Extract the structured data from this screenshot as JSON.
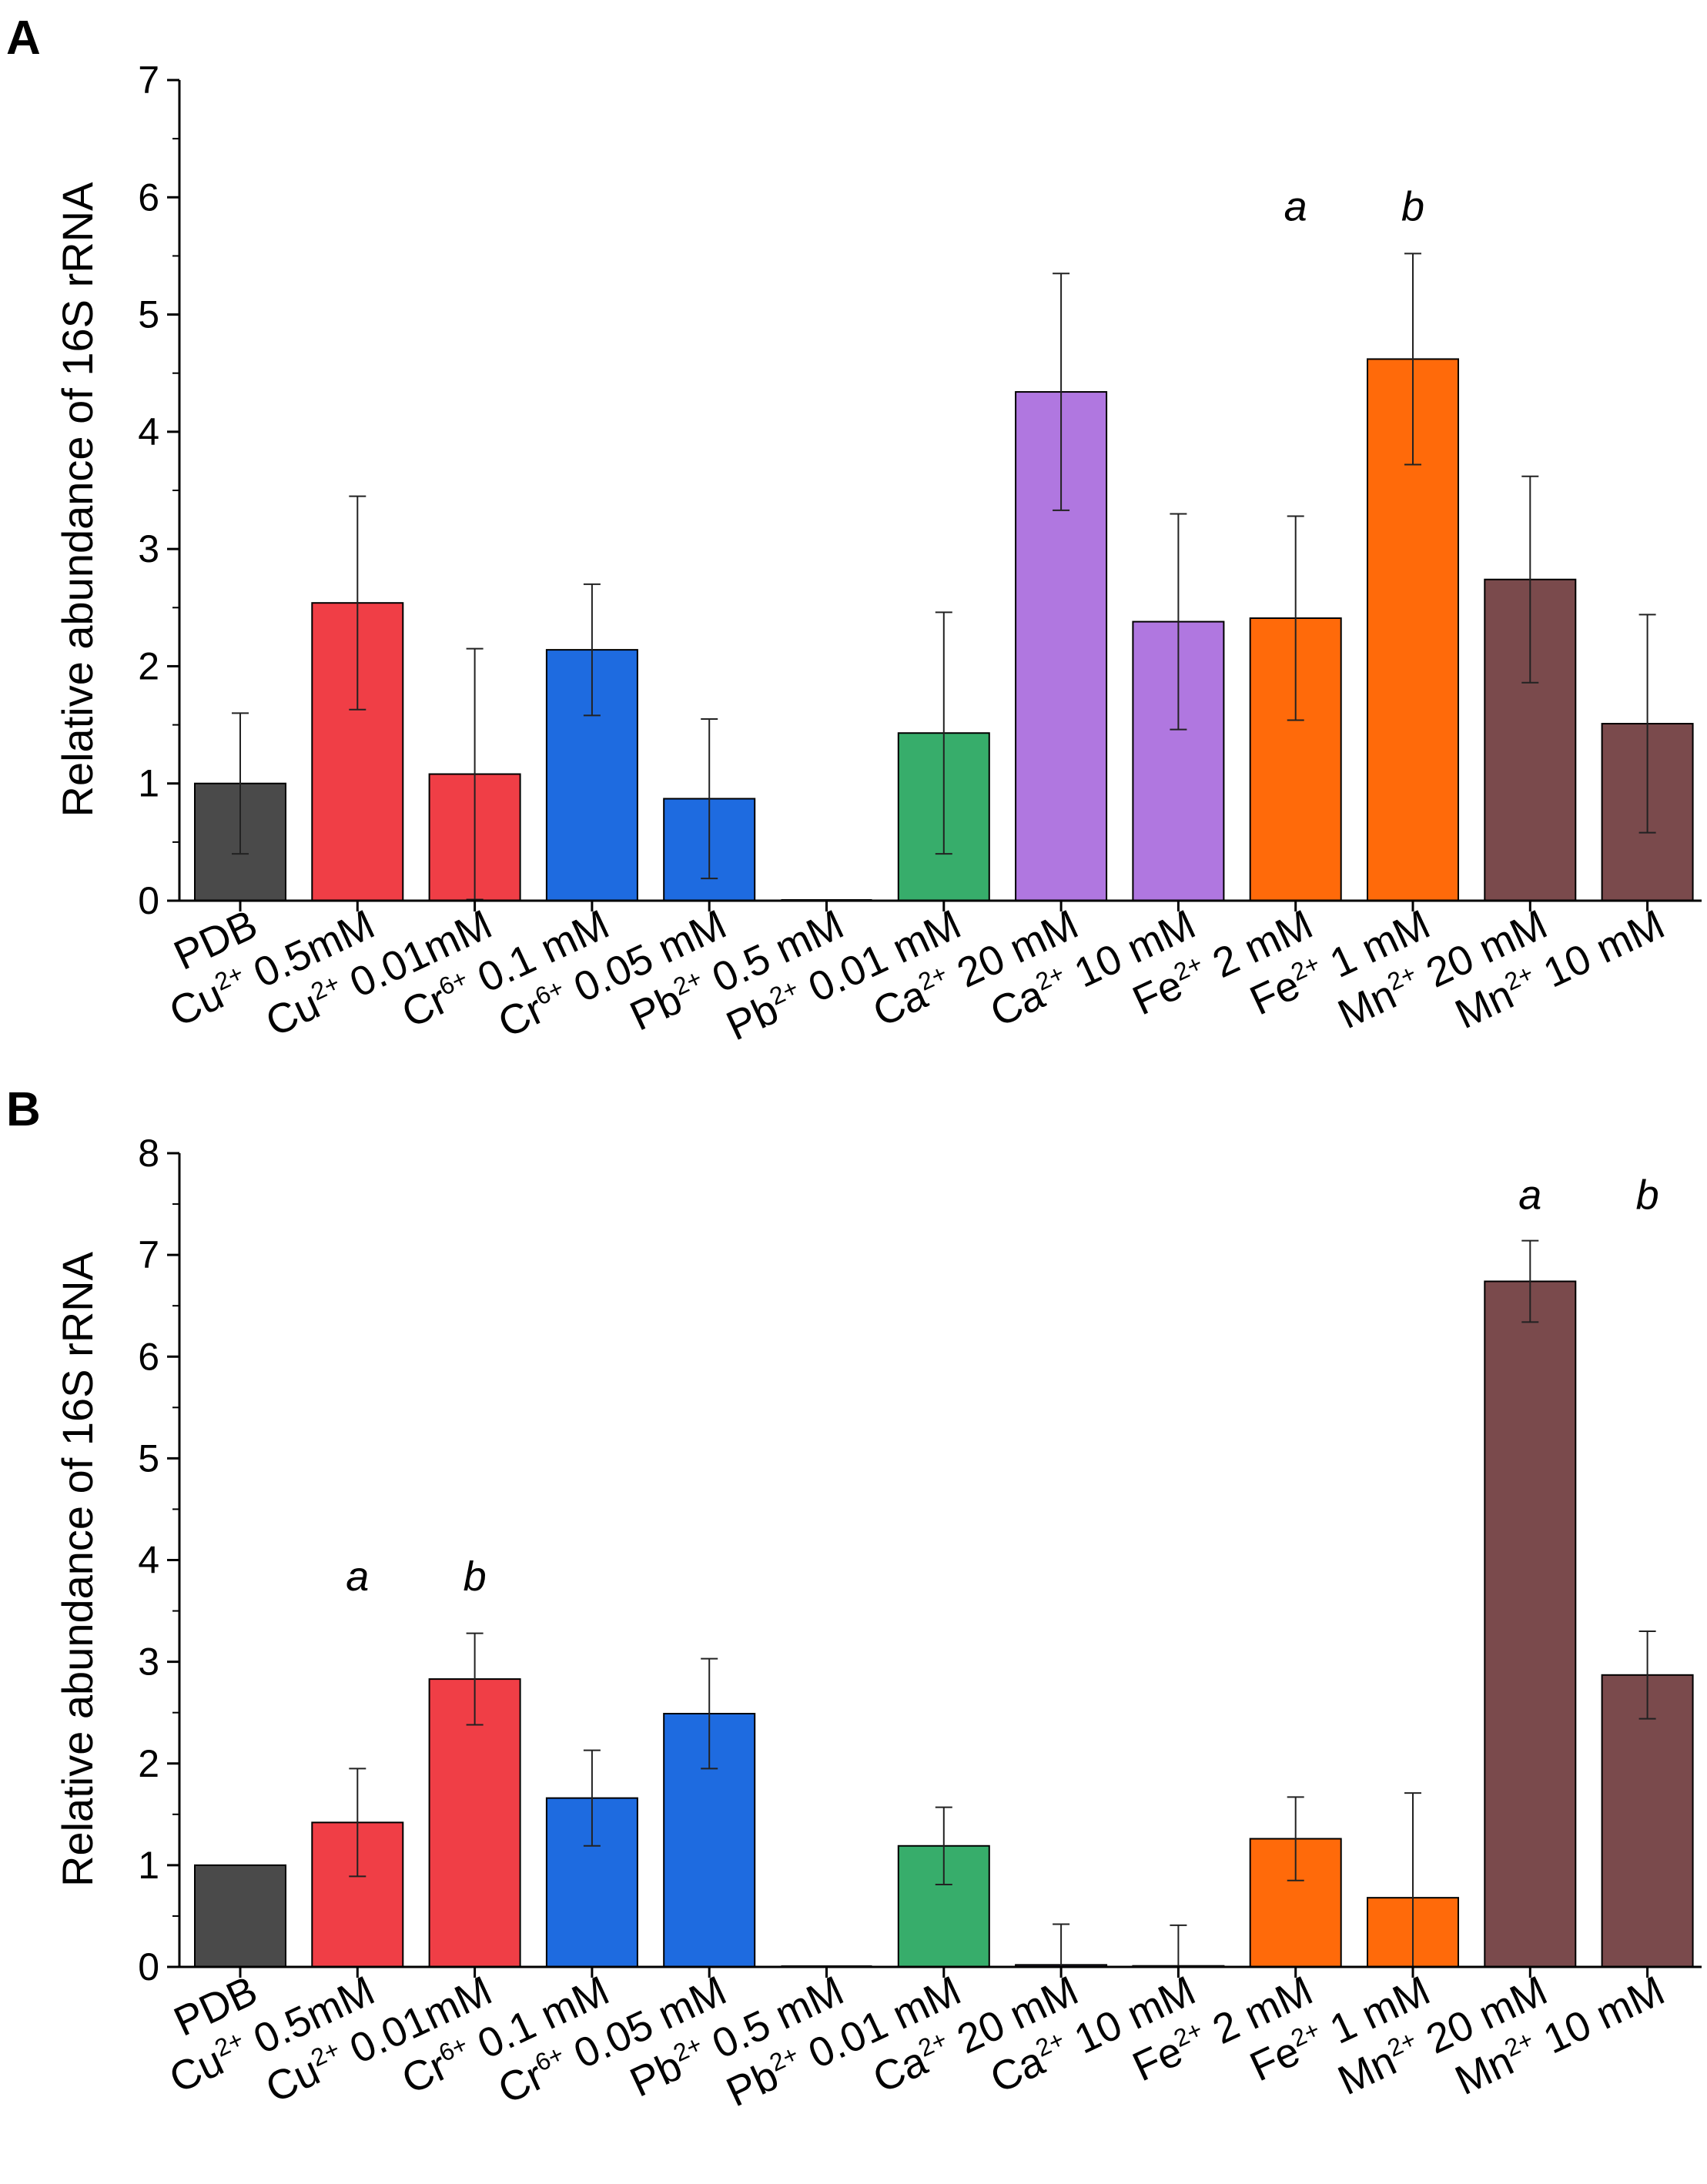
{
  "chart_data": [
    {
      "type": "bar",
      "panel_label": "A",
      "ylabel": "Relative abundance of 16S rRNA",
      "ylim": [
        0,
        7
      ],
      "yticks": [
        0,
        1,
        2,
        3,
        4,
        5,
        6,
        7
      ],
      "categories": [
        {
          "base": "PDB",
          "sup": "",
          "rest": ""
        },
        {
          "base": "Cu",
          "sup": "2+",
          "rest": " 0.5mM"
        },
        {
          "base": "Cu",
          "sup": "2+",
          "rest": " 0.01mM"
        },
        {
          "base": "Cr",
          "sup": "6+",
          "rest": " 0.1 mM"
        },
        {
          "base": "Cr",
          "sup": "6+",
          "rest": " 0.05 mM"
        },
        {
          "base": "Pb",
          "sup": "2+",
          "rest": " 0.5 mM"
        },
        {
          "base": "Pb",
          "sup": "2+",
          "rest": " 0.01 mM"
        },
        {
          "base": "Ca",
          "sup": "2+",
          "rest": " 20 mM"
        },
        {
          "base": "Ca",
          "sup": "2+",
          "rest": " 10 mM"
        },
        {
          "base": "Fe",
          "sup": "2+",
          "rest": " 2 mM"
        },
        {
          "base": "Fe",
          "sup": "2+",
          "rest": " 1 mM"
        },
        {
          "base": "Mn",
          "sup": "2+",
          "rest": " 20 mM"
        },
        {
          "base": "Mn",
          "sup": "2+",
          "rest": " 10 mM"
        }
      ],
      "values": [
        1.0,
        2.54,
        1.08,
        2.14,
        0.87,
        0.0,
        1.43,
        4.34,
        2.38,
        2.41,
        4.62,
        2.74,
        1.51
      ],
      "errors": [
        0.6,
        0.91,
        1.07,
        0.56,
        0.68,
        0.0,
        1.03,
        1.01,
        0.92,
        0.87,
        0.9,
        0.88,
        0.93
      ],
      "colors": [
        "#4a4a4a",
        "#f03e46",
        "#f03e46",
        "#1e6be0",
        "#1e6be0",
        "#1e6be0",
        "#37ad6b",
        "#b077e0",
        "#b077e0",
        "#ff6a0a",
        "#ff6a0a",
        "#7a4a4c",
        "#7a4a4c"
      ],
      "annotations": [
        {
          "text": "a",
          "category_index": 9,
          "y": 5.8
        },
        {
          "text": "b",
          "category_index": 10,
          "y": 5.8
        }
      ]
    },
    {
      "type": "bar",
      "panel_label": "B",
      "ylabel": "Relative abundance of 16S rRNA",
      "ylim": [
        0,
        8
      ],
      "yticks": [
        0,
        1,
        2,
        3,
        4,
        5,
        6,
        7,
        8
      ],
      "categories": [
        {
          "base": "PDB",
          "sup": "",
          "rest": ""
        },
        {
          "base": "Cu",
          "sup": "2+",
          "rest": " 0.5mM"
        },
        {
          "base": "Cu",
          "sup": "2+",
          "rest": " 0.01mM"
        },
        {
          "base": "Cr",
          "sup": "6+",
          "rest": " 0.1 mM"
        },
        {
          "base": "Cr",
          "sup": "6+",
          "rest": " 0.05 mM"
        },
        {
          "base": "Pb",
          "sup": "2+",
          "rest": " 0.5 mM"
        },
        {
          "base": "Pb",
          "sup": "2+",
          "rest": " 0.01 mM"
        },
        {
          "base": "Ca",
          "sup": "2+",
          "rest": " 20 mM"
        },
        {
          "base": "Ca",
          "sup": "2+",
          "rest": " 10 mM"
        },
        {
          "base": "Fe",
          "sup": "2+",
          "rest": " 2 mM"
        },
        {
          "base": "Fe",
          "sup": "2+",
          "rest": " 1 mM"
        },
        {
          "base": "Mn",
          "sup": "2+",
          "rest": " 20 mM"
        },
        {
          "base": "Mn",
          "sup": "2+",
          "rest": " 10 mM"
        }
      ],
      "values": [
        1.0,
        1.42,
        2.83,
        1.66,
        2.49,
        0.0,
        1.19,
        0.02,
        0.01,
        1.26,
        0.68,
        6.74,
        2.87
      ],
      "errors": [
        0.0,
        0.53,
        0.45,
        0.47,
        0.54,
        0.0,
        0.38,
        0.4,
        0.4,
        0.41,
        1.03,
        0.4,
        0.43
      ],
      "colors": [
        "#4a4a4a",
        "#f03e46",
        "#f03e46",
        "#1e6be0",
        "#1e6be0",
        "#1e6be0",
        "#37ad6b",
        "#b077e0",
        "#b077e0",
        "#ff6a0a",
        "#ff6a0a",
        "#7a4a4c",
        "#7a4a4c"
      ],
      "annotations": [
        {
          "text": "a",
          "category_index": 1,
          "y": 3.7
        },
        {
          "text": "b",
          "category_index": 2,
          "y": 3.7
        },
        {
          "text": "a",
          "category_index": 11,
          "y": 7.45
        },
        {
          "text": "b",
          "category_index": 12,
          "y": 7.45
        }
      ]
    }
  ]
}
